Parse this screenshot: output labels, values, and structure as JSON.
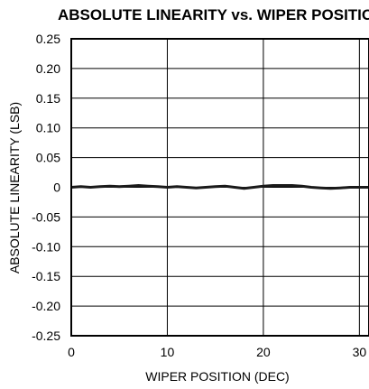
{
  "chart_data": {
    "type": "line",
    "title": "ABSOLUTE LINEARITY vs. WIPER POSITIO",
    "xlabel": "WIPER POSITION (DEC)",
    "ylabel": "ABSOLUTE LINEARITY (LSB)",
    "xlim": [
      0,
      31
    ],
    "ylim": [
      -0.25,
      0.25
    ],
    "x_ticks": [
      "0",
      "10",
      "20",
      "30"
    ],
    "y_ticks": [
      "0.25",
      "0.20",
      "0.15",
      "0.10",
      "0.05",
      "0",
      "-0.05",
      "-0.10",
      "-0.15",
      "-0.20",
      "-0.25"
    ],
    "grid": true,
    "series": [
      {
        "color": "#1a1a1a",
        "x": [
          0,
          1,
          2,
          3,
          4,
          5,
          6,
          7,
          8,
          9,
          10,
          11,
          12,
          13,
          14,
          15,
          16,
          17,
          18,
          19,
          20,
          21,
          22,
          23,
          24,
          25,
          26,
          27,
          28,
          29,
          30,
          31
        ],
        "y": [
          0.0,
          0.001,
          0.0,
          0.001,
          0.002,
          0.001,
          0.002,
          0.003,
          0.002,
          0.001,
          0.0,
          0.001,
          0.0,
          -0.001,
          0.0,
          0.001,
          0.002,
          0.0,
          -0.002,
          0.0,
          0.002,
          0.003,
          0.003,
          0.003,
          0.002,
          0.0,
          -0.001,
          -0.002,
          -0.001,
          0.0,
          0.0,
          0.0
        ]
      }
    ]
  }
}
